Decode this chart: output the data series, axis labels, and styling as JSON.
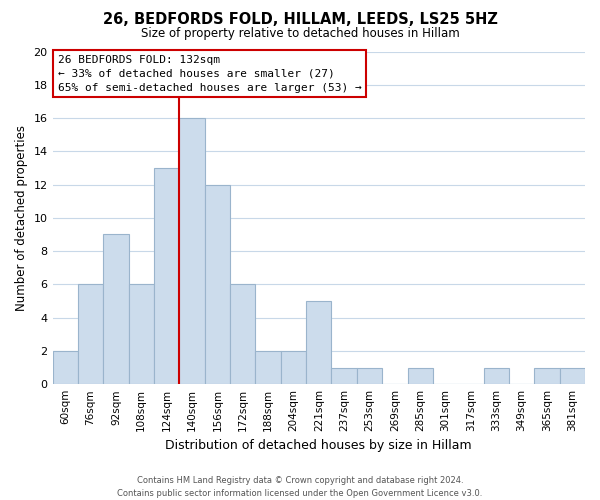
{
  "title": "26, BEDFORDS FOLD, HILLAM, LEEDS, LS25 5HZ",
  "subtitle": "Size of property relative to detached houses in Hillam",
  "xlabel": "Distribution of detached houses by size in Hillam",
  "ylabel": "Number of detached properties",
  "bar_labels": [
    "60sqm",
    "76sqm",
    "92sqm",
    "108sqm",
    "124sqm",
    "140sqm",
    "156sqm",
    "172sqm",
    "188sqm",
    "204sqm",
    "221sqm",
    "237sqm",
    "253sqm",
    "269sqm",
    "285sqm",
    "301sqm",
    "317sqm",
    "333sqm",
    "349sqm",
    "365sqm",
    "381sqm"
  ],
  "bar_values": [
    2,
    6,
    9,
    6,
    13,
    16,
    12,
    6,
    2,
    2,
    5,
    1,
    1,
    0,
    1,
    0,
    0,
    1,
    0,
    1,
    1
  ],
  "bar_color": "#ccdcec",
  "bar_edge_color": "#9ab4cc",
  "highlight_line_color": "#cc0000",
  "ylim": [
    0,
    20
  ],
  "yticks": [
    0,
    2,
    4,
    6,
    8,
    10,
    12,
    14,
    16,
    18,
    20
  ],
  "annotation_title": "26 BEDFORDS FOLD: 132sqm",
  "annotation_line1": "← 33% of detached houses are smaller (27)",
  "annotation_line2": "65% of semi-detached houses are larger (53) →",
  "annotation_box_color": "#ffffff",
  "annotation_box_edge": "#cc0000",
  "footer_line1": "Contains HM Land Registry data © Crown copyright and database right 2024.",
  "footer_line2": "Contains public sector information licensed under the Open Government Licence v3.0.",
  "background_color": "#ffffff",
  "grid_color": "#c8d8e8"
}
